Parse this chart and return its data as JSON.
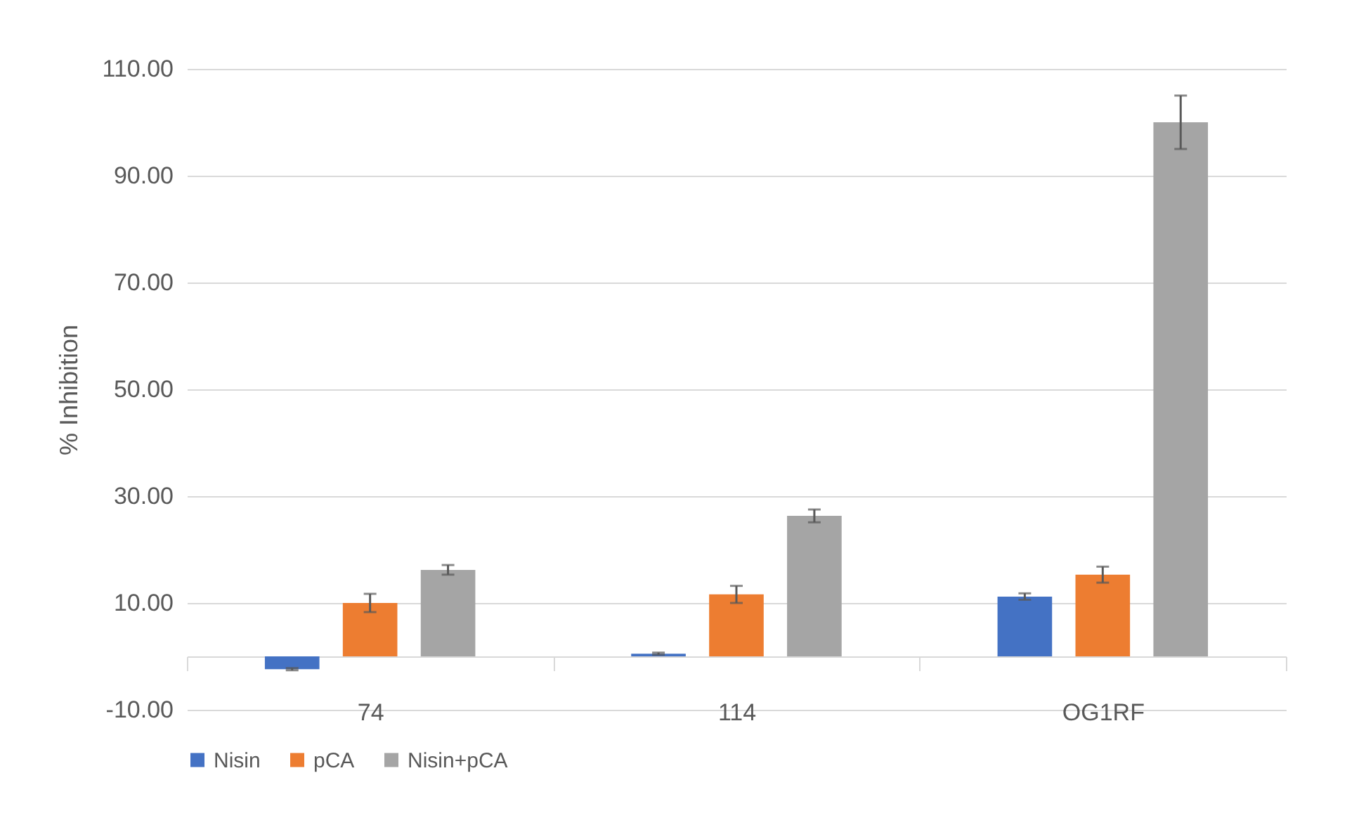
{
  "chart_data": {
    "type": "bar",
    "ylabel": "% Inhibition",
    "categories": [
      "74",
      "114",
      "OG1RF"
    ],
    "series": [
      {
        "name": "Nisin",
        "color": "#4472c4",
        "values": [
          -2.4,
          0.5,
          11.2
        ],
        "errors": [
          0.2,
          0.2,
          0.6
        ]
      },
      {
        "name": "pCA",
        "color": "#ed7d31",
        "values": [
          10.0,
          11.6,
          15.3
        ],
        "errors": [
          1.7,
          1.6,
          1.5
        ]
      },
      {
        "name": "Nisin+pCA",
        "color": "#a5a5a5",
        "values": [
          16.2,
          26.3,
          100.0
        ],
        "errors": [
          0.9,
          1.2,
          5.0
        ]
      }
    ],
    "ylim": [
      -10,
      110
    ],
    "yticks": [
      {
        "value": -10,
        "label": "-10.00"
      },
      {
        "value": 10,
        "label": "10.00"
      },
      {
        "value": 30,
        "label": "30.00"
      },
      {
        "value": 50,
        "label": "50.00"
      },
      {
        "value": 70,
        "label": "70.00"
      },
      {
        "value": 90,
        "label": "90.00"
      },
      {
        "value": 110,
        "label": "110.00"
      }
    ],
    "grid": "y",
    "legend": "bottom"
  }
}
